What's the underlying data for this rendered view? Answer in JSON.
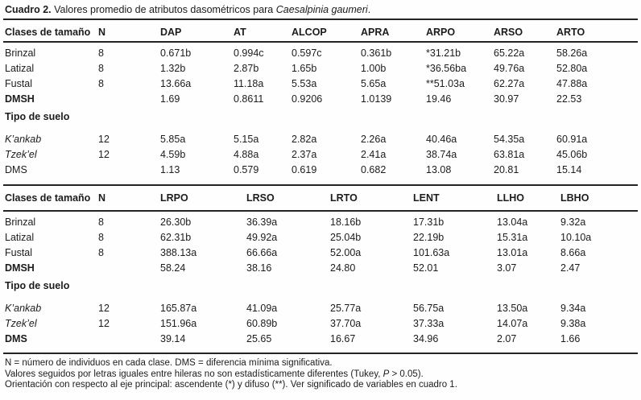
{
  "title": {
    "bold": "Cuadro 2.",
    "text": " Valores promedio de atributos dasométricos para ",
    "species": "Caesalpinia gaumeri",
    "end": "."
  },
  "table1": {
    "headers": [
      "Clases de tamaño",
      "N",
      "DAP",
      "AT",
      "ALCOP",
      "APRA",
      "ARPO",
      "ARSO",
      "ARTO"
    ],
    "size_rows": [
      {
        "label": "Brinzal",
        "style": "",
        "n": "8",
        "values": [
          "0.671b",
          "0.994c",
          "0.597c",
          "0.361b",
          "*31.21b",
          "65.22a",
          "58.26a"
        ]
      },
      {
        "label": "Latizal",
        "style": "",
        "n": "8",
        "values": [
          "1.32b",
          "2.87b",
          "1.65b",
          "1.00b",
          "*36.56ba",
          "49.76a",
          "52.80a"
        ]
      },
      {
        "label": "Fustal",
        "style": "",
        "n": "8",
        "values": [
          "13.66a",
          "11.18a",
          "5.53a",
          "5.65a",
          "**51.03a",
          "62.27a",
          "47.88a"
        ]
      },
      {
        "label": "DMSH",
        "style": "bold",
        "n": "",
        "values": [
          "1.69",
          "0.8611",
          "0.9206",
          "1.0139",
          "19.46",
          "30.97",
          "22.53"
        ]
      }
    ],
    "soil_header": "Tipo de suelo",
    "soil_rows": [
      {
        "label": "K’ankab",
        "style": "italic",
        "n": "12",
        "values": [
          "5.85a",
          "5.15a",
          "2.82a",
          "2.26a",
          "40.46a",
          "54.35a",
          "60.91a"
        ]
      },
      {
        "label": "Tzek’el",
        "style": "italic",
        "n": "12",
        "values": [
          "4.59b",
          "4.88a",
          "2.37a",
          "2.41a",
          "38.74a",
          "63.81a",
          "45.06b"
        ]
      },
      {
        "label": "DMS",
        "style": "",
        "n": "",
        "values": [
          "1.13",
          "0.579",
          "0.619",
          "0.682",
          "13.08",
          "20.81",
          "15.14"
        ]
      }
    ]
  },
  "table2": {
    "headers": [
      "Clases de tamaño",
      "N",
      "LRPO",
      "LRSO",
      "LRTO",
      "LENT",
      "LLHO",
      "LBHO"
    ],
    "size_rows": [
      {
        "label": "Brinzal",
        "style": "",
        "n": "8",
        "values": [
          "26.30b",
          "36.39a",
          "18.16b",
          "17.31b",
          "13.04a",
          "9.32a"
        ]
      },
      {
        "label": "Latizal",
        "style": "",
        "n": "8",
        "values": [
          "62.31b",
          "49.92a",
          "25.04b",
          "22.19b",
          "15.31a",
          "10.10a"
        ]
      },
      {
        "label": "Fustal",
        "style": "",
        "n": "8",
        "values": [
          "388.13a",
          "66.66a",
          "52.00a",
          "101.63a",
          "13.01a",
          "8.66a"
        ]
      },
      {
        "label": "DMSH",
        "style": "bold",
        "n": "",
        "values": [
          "58.24",
          "38.16",
          "24.80",
          "52.01",
          "3.07",
          "2.47"
        ]
      }
    ],
    "soil_header": "Tipo de suelo",
    "soil_rows": [
      {
        "label": "K’ankab",
        "style": "italic",
        "n": "12",
        "values": [
          "165.87a",
          "41.09a",
          "25.77a",
          "56.75a",
          "13.50a",
          "9.34a"
        ]
      },
      {
        "label": "Tzek’el",
        "style": "italic",
        "n": "12",
        "values": [
          "151.96a",
          "60.89b",
          "37.70a",
          "37.33a",
          "14.07a",
          "9.38a"
        ]
      },
      {
        "label": "DMS",
        "style": "bold",
        "n": "",
        "values": [
          "39.14",
          "25.65",
          "16.67",
          "34.96",
          "2.07",
          "1.66"
        ]
      }
    ]
  },
  "footnotes": {
    "line1": "N = número de individuos en cada clase. DMS = diferencia mínima significativa.",
    "line2_pre": "Valores seguidos por letras iguales entre hileras no son estadísticamente diferentes (Tukey, ",
    "line2_italic": "P",
    "line2_post": " > 0.05).",
    "line3": "Orientación con respecto al eje principal: ascendente (*) y difuso (**). Ver significado de variables en cuadro 1."
  }
}
